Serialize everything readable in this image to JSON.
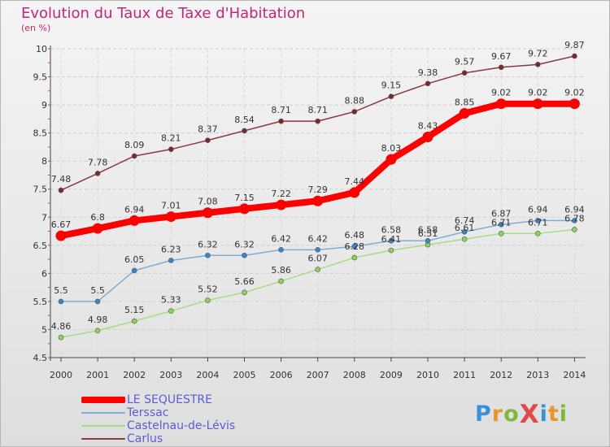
{
  "title": "Evolution du Taux de Taxe d'Habitation",
  "subtitle": "(en %)",
  "logo_text": "ProXiti",
  "chart_data": {
    "type": "line",
    "x": [
      "2000",
      "2001",
      "2002",
      "2003",
      "2004",
      "2005",
      "2006",
      "2007",
      "2008",
      "2009",
      "2010",
      "2011",
      "2012",
      "2013",
      "2014"
    ],
    "ylim": [
      4.5,
      10
    ],
    "yticks": [
      "4.5",
      "5",
      "5.5",
      "6",
      "6.5",
      "7",
      "7.5",
      "8",
      "8.5",
      "9",
      "9.5",
      "10"
    ],
    "grid": true,
    "legend_position": "bottom-left",
    "series": [
      {
        "name": "Carlus",
        "color": "#7a2a2f",
        "stroke": "#8a3a3f",
        "width": 1.5,
        "marker_r": 3,
        "values": [
          7.48,
          7.78,
          8.09,
          8.21,
          8.37,
          8.54,
          8.71,
          8.71,
          8.88,
          9.15,
          9.38,
          9.57,
          9.67,
          9.72,
          9.87
        ],
        "labels": [
          "7.48",
          "7.78",
          "8.09",
          "8.21",
          "8.37",
          "8.54",
          "8.71",
          "8.71",
          "8.88",
          "9.15",
          "9.38",
          "9.57",
          "9.67",
          "9.72",
          "9.87"
        ]
      },
      {
        "name": "Castelnau-de-Lévis",
        "color": "#8cd45a",
        "stroke": "#a8dc84",
        "width": 1.5,
        "marker_r": 3,
        "values": [
          4.86,
          4.98,
          5.15,
          5.33,
          5.52,
          5.66,
          5.86,
          6.07,
          6.28,
          6.41,
          6.51,
          6.61,
          6.71,
          6.71,
          6.78
        ],
        "labels": [
          "4.86",
          "4.98",
          "5.15",
          "5.33",
          "5.52",
          "5.66",
          "5.86",
          "6.07",
          "6.28",
          "6.41",
          "6.51",
          "6.61",
          "6.71",
          "6.71",
          "6.78"
        ]
      },
      {
        "name": "Terssac",
        "color": "#3d84c6",
        "stroke": "#7fadd6",
        "width": 1.5,
        "marker_r": 3,
        "values": [
          5.5,
          5.5,
          6.05,
          6.23,
          6.32,
          6.32,
          6.42,
          6.42,
          6.48,
          6.58,
          6.58,
          6.74,
          6.87,
          6.94,
          6.94
        ],
        "labels": [
          "5.5",
          "5.5",
          "6.05",
          "6.23",
          "6.32",
          "6.32",
          "6.42",
          "6.42",
          "6.48",
          "6.58",
          "6.58",
          "6.74",
          "6.87",
          "6.94",
          "6.94"
        ]
      },
      {
        "name": "LE SEQUESTRE",
        "color": "#ff0000",
        "stroke": "#ff0000",
        "width": 8,
        "marker_r": 6.5,
        "values": [
          6.67,
          6.8,
          6.94,
          7.01,
          7.08,
          7.15,
          7.22,
          7.29,
          7.44,
          8.03,
          8.43,
          8.85,
          9.02,
          9.02,
          9.02
        ],
        "labels": [
          "6.67",
          "6.8",
          "6.94",
          "7.01",
          "7.08",
          "7.15",
          "7.22",
          "7.29",
          "7.44",
          "8.03",
          "8.43",
          "8.85",
          "9.02",
          "9.02",
          "9.02"
        ]
      }
    ],
    "legend": [
      "LE SEQUESTRE",
      "Terssac",
      "Castelnau-de-Lévis",
      "Carlus"
    ]
  }
}
